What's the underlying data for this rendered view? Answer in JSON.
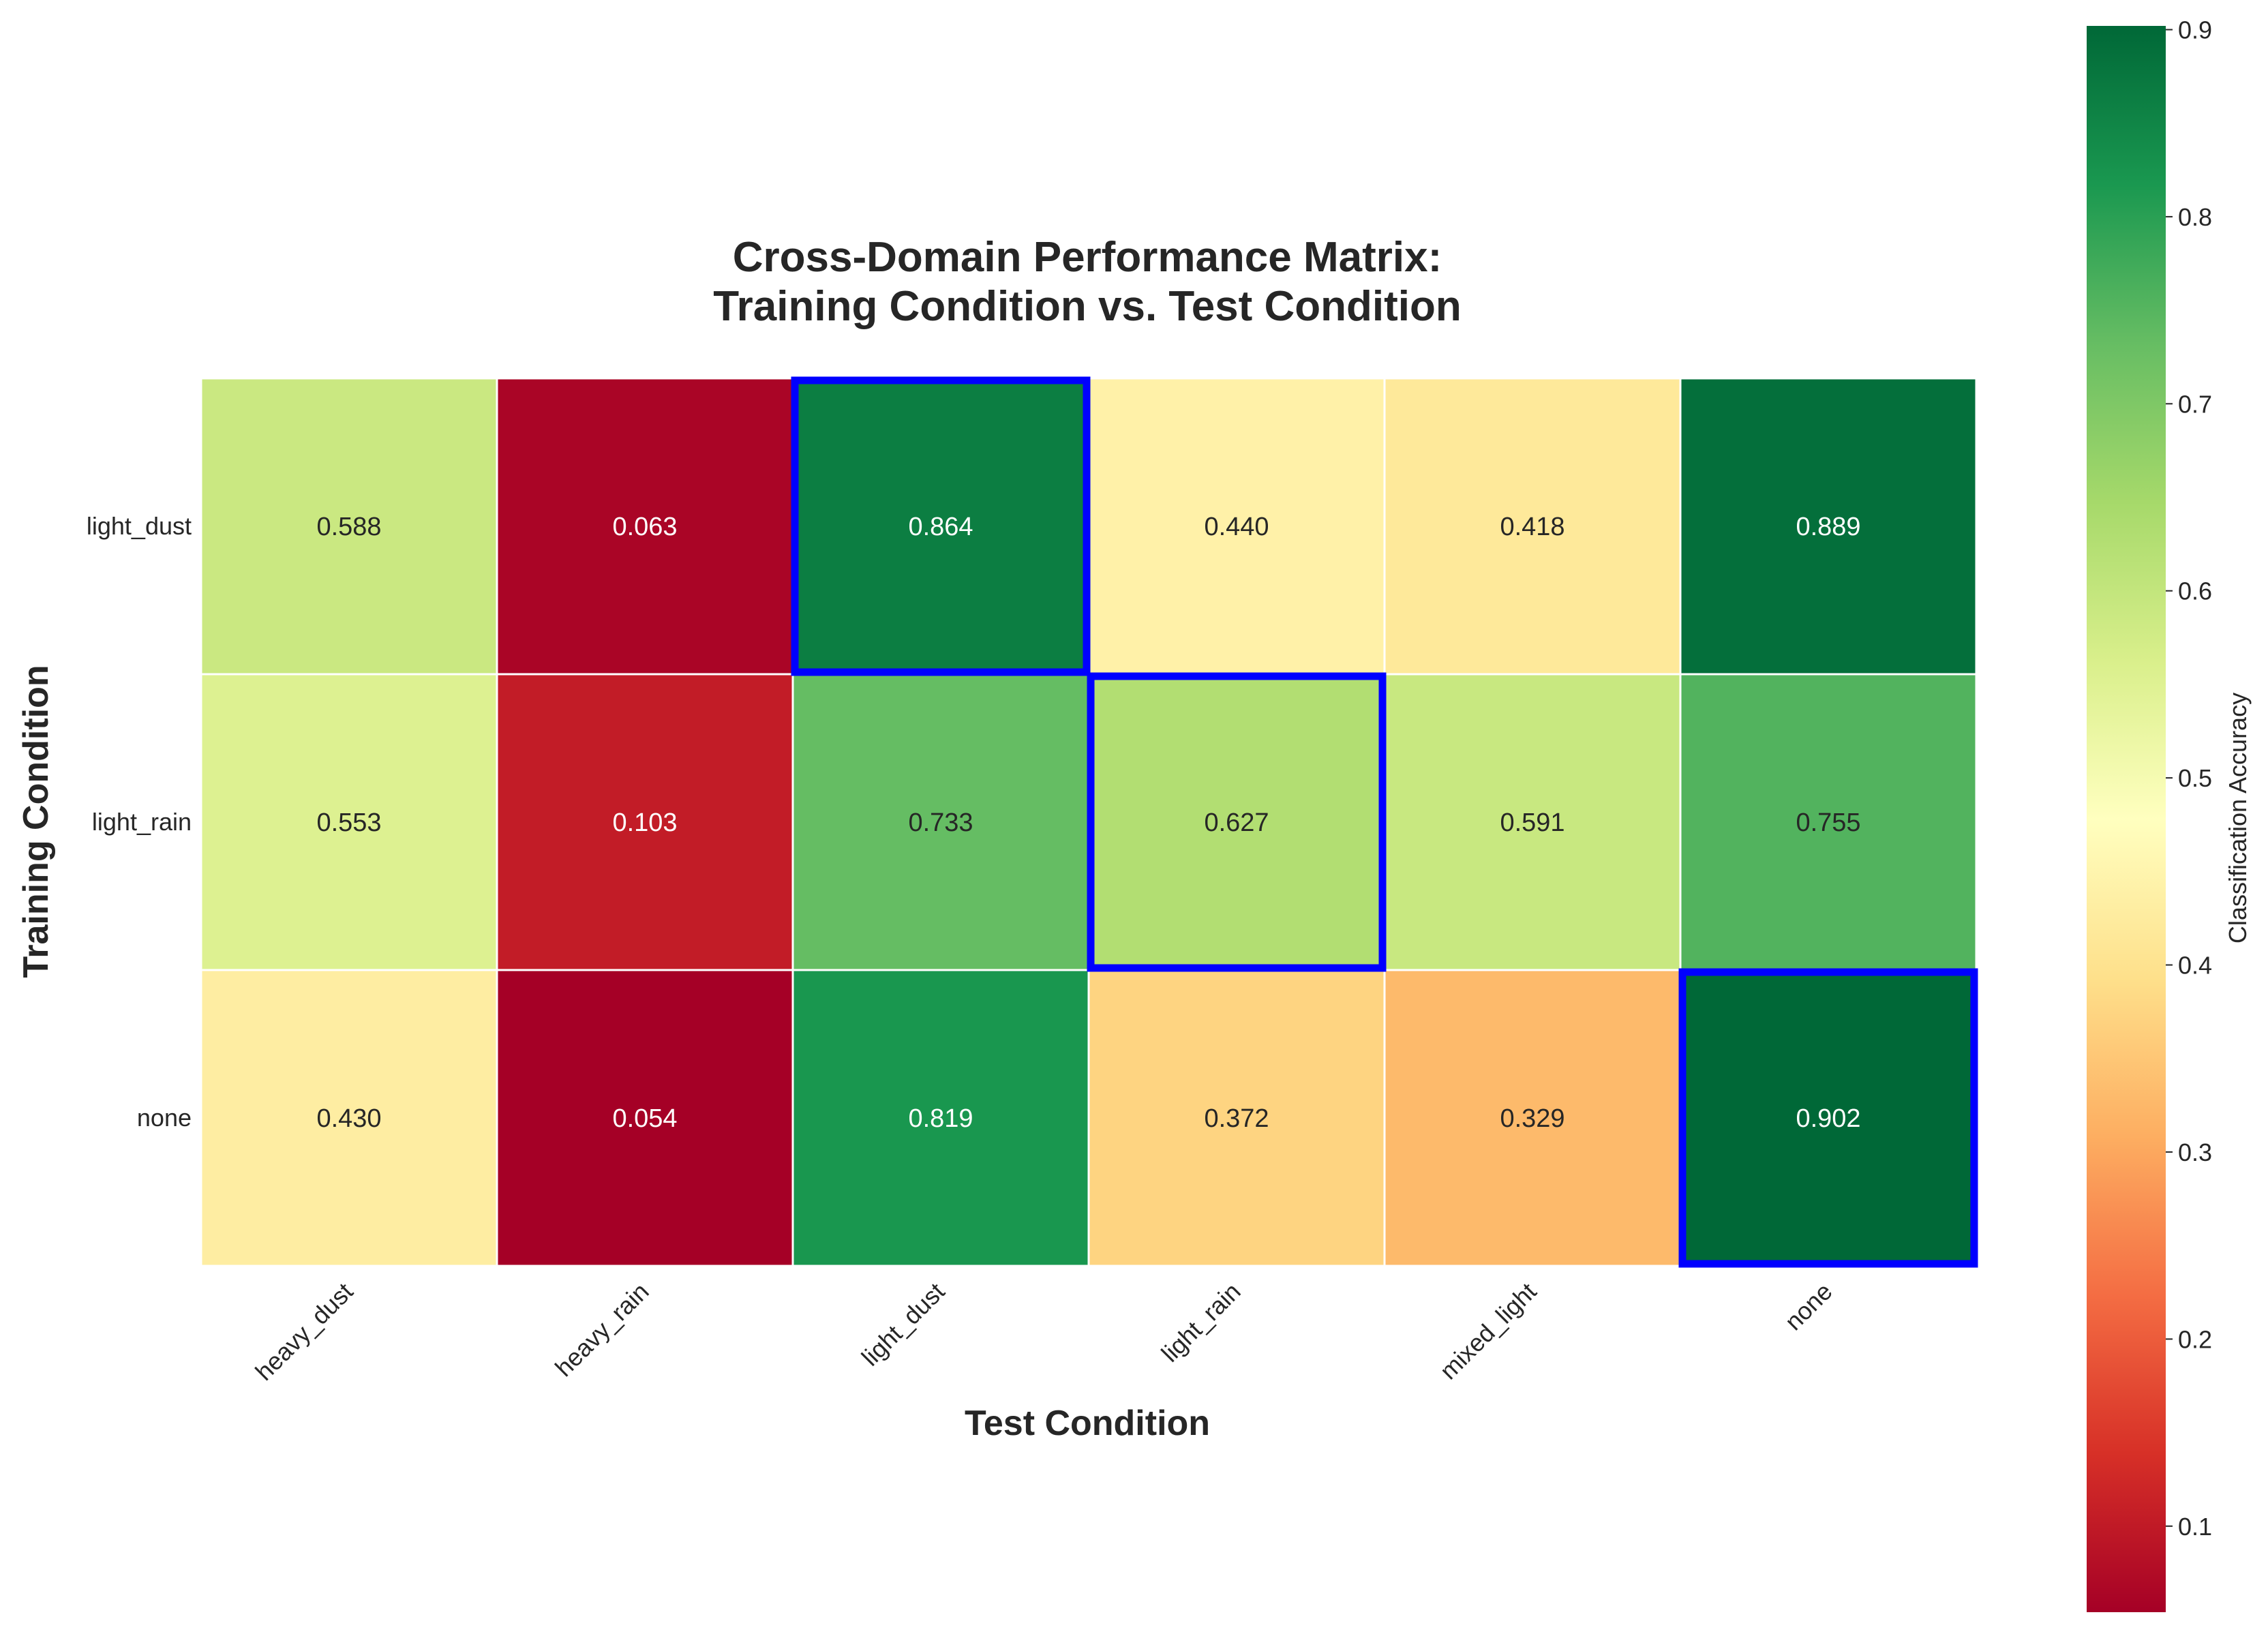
{
  "chart_data": {
    "type": "heatmap",
    "title_lines": [
      "Cross-Domain Performance Matrix:",
      "Training Condition vs. Test Condition"
    ],
    "xlabel": "Test Condition",
    "ylabel": "Training Condition",
    "x_categories": [
      "heavy_dust",
      "heavy_rain",
      "light_dust",
      "light_rain",
      "mixed_light",
      "none"
    ],
    "y_categories": [
      "light_dust",
      "light_rain",
      "none"
    ],
    "values": [
      [
        0.588,
        0.063,
        0.864,
        0.44,
        0.418,
        0.889
      ],
      [
        0.553,
        0.103,
        0.733,
        0.627,
        0.591,
        0.755
      ],
      [
        0.43,
        0.054,
        0.819,
        0.372,
        0.329,
        0.902
      ]
    ],
    "value_labels": [
      [
        "0.588",
        "0.063",
        "0.864",
        "0.440",
        "0.418",
        "0.889"
      ],
      [
        "0.553",
        "0.103",
        "0.733",
        "0.627",
        "0.591",
        "0.755"
      ],
      [
        "0.430",
        "0.054",
        "0.819",
        "0.372",
        "0.329",
        "0.902"
      ]
    ],
    "highlighted_cells": [
      [
        0,
        2
      ],
      [
        1,
        3
      ],
      [
        2,
        5
      ]
    ],
    "highlight_color": "#0000ff",
    "colormap": "RdYlGn",
    "colorbar": {
      "label": "Classification Accuracy",
      "vmin": 0.054,
      "vmax": 0.902,
      "ticks": [
        "0.1",
        "0.2",
        "0.3",
        "0.4",
        "0.5",
        "0.6",
        "0.7",
        "0.8",
        "0.9"
      ]
    }
  }
}
